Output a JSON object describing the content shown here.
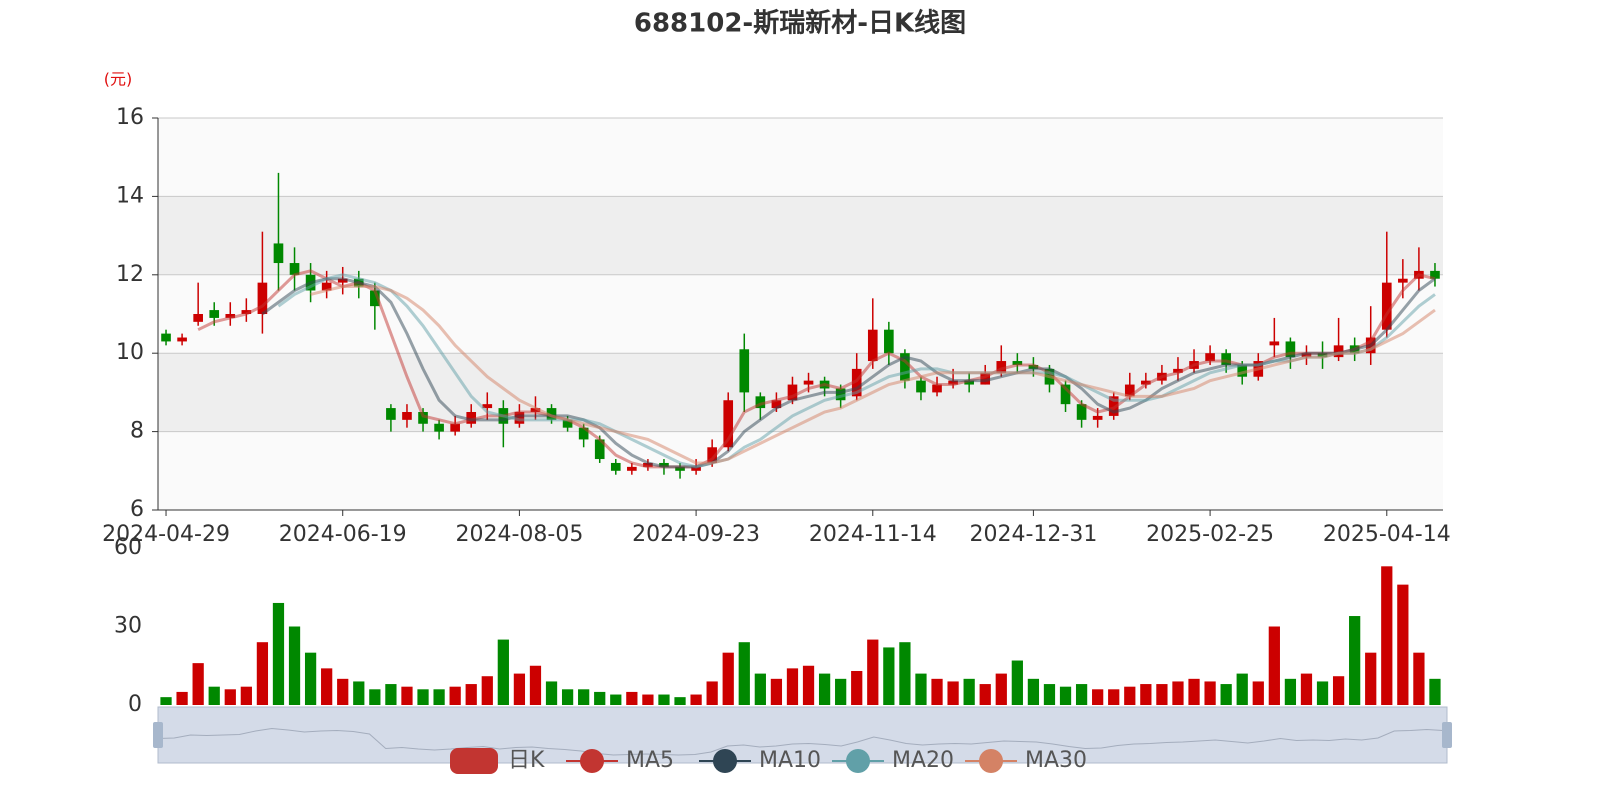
{
  "chart_data": {
    "type": "candlestick",
    "title": "688102-斯瑞新材-日K线图",
    "y_unit": "(元)",
    "categories": [
      "2024-04-29",
      null,
      null,
      null,
      null,
      null,
      null,
      null,
      null,
      null,
      null,
      "2024-06-19",
      null,
      null,
      null,
      null,
      null,
      null,
      null,
      null,
      null,
      null,
      "2024-08-05",
      null,
      null,
      null,
      null,
      null,
      null,
      null,
      null,
      null,
      null,
      "2024-09-23",
      null,
      null,
      null,
      null,
      null,
      null,
      null,
      null,
      null,
      null,
      "2024-11-14",
      null,
      null,
      null,
      null,
      null,
      null,
      null,
      null,
      null,
      "2024-12-31",
      null,
      null,
      null,
      null,
      null,
      null,
      null,
      null,
      null,
      null,
      "2025-02-25",
      null,
      null,
      null,
      null,
      null,
      null,
      null,
      null,
      null,
      null,
      "2025-04-14",
      null,
      null,
      null
    ],
    "ylim": [
      6,
      16
    ],
    "yticks": [
      6,
      8,
      10,
      12,
      14,
      16
    ],
    "grid": true,
    "series": [
      {
        "name": "日K",
        "color": "#c23531",
        "up_color": "#cc0000",
        "down_color": "#008800",
        "values": [
          [
            10.5,
            10.3,
            10.2,
            10.6
          ],
          [
            10.3,
            10.4,
            10.2,
            10.5
          ],
          [
            10.8,
            11.0,
            10.7,
            11.8
          ],
          [
            11.1,
            10.9,
            10.7,
            11.3
          ],
          [
            10.9,
            11.0,
            10.7,
            11.3
          ],
          [
            11.0,
            11.1,
            10.8,
            11.4
          ],
          [
            11.0,
            11.8,
            10.5,
            13.1
          ],
          [
            12.8,
            12.3,
            11.6,
            14.6
          ],
          [
            12.3,
            12.0,
            11.6,
            12.7
          ],
          [
            12.0,
            11.6,
            11.3,
            12.3
          ],
          [
            11.6,
            11.8,
            11.4,
            12.1
          ],
          [
            11.8,
            11.9,
            11.5,
            12.2
          ],
          [
            11.9,
            11.7,
            11.4,
            12.1
          ],
          [
            11.6,
            11.2,
            10.6,
            11.8
          ],
          [
            8.6,
            8.3,
            8.0,
            8.7
          ],
          [
            8.3,
            8.5,
            8.1,
            8.7
          ],
          [
            8.5,
            8.2,
            8.0,
            8.6
          ],
          [
            8.2,
            8.0,
            7.8,
            8.3
          ],
          [
            8.0,
            8.2,
            7.9,
            8.4
          ],
          [
            8.2,
            8.5,
            8.1,
            8.7
          ],
          [
            8.6,
            8.7,
            8.3,
            9.0
          ],
          [
            8.6,
            8.2,
            7.6,
            8.8
          ],
          [
            8.2,
            8.5,
            8.1,
            8.7
          ],
          [
            8.5,
            8.6,
            8.3,
            8.9
          ],
          [
            8.6,
            8.3,
            8.2,
            8.7
          ],
          [
            8.3,
            8.1,
            8.0,
            8.4
          ],
          [
            8.1,
            7.8,
            7.6,
            8.2
          ],
          [
            7.8,
            7.3,
            7.2,
            7.9
          ],
          [
            7.2,
            7.0,
            6.9,
            7.3
          ],
          [
            7.0,
            7.1,
            6.9,
            7.2
          ],
          [
            7.1,
            7.2,
            7.0,
            7.3
          ],
          [
            7.2,
            7.1,
            6.9,
            7.3
          ],
          [
            7.1,
            7.0,
            6.8,
            7.2
          ],
          [
            7.0,
            7.1,
            6.9,
            7.3
          ],
          [
            7.2,
            7.6,
            7.1,
            7.8
          ],
          [
            7.6,
            8.8,
            7.5,
            9.0
          ],
          [
            10.1,
            9.0,
            8.5,
            10.5
          ],
          [
            8.9,
            8.6,
            8.3,
            9.0
          ],
          [
            8.6,
            8.8,
            8.5,
            9.0
          ],
          [
            8.8,
            9.2,
            8.7,
            9.4
          ],
          [
            9.2,
            9.3,
            9.0,
            9.5
          ],
          [
            9.3,
            9.1,
            8.9,
            9.4
          ],
          [
            9.1,
            8.8,
            8.6,
            9.2
          ],
          [
            8.9,
            9.6,
            8.8,
            10.0
          ],
          [
            9.8,
            10.6,
            9.6,
            11.4
          ],
          [
            10.6,
            10.0,
            9.7,
            10.8
          ],
          [
            10.0,
            9.3,
            9.1,
            10.1
          ],
          [
            9.3,
            9.0,
            8.8,
            9.4
          ],
          [
            9.0,
            9.2,
            8.9,
            9.4
          ],
          [
            9.2,
            9.3,
            9.1,
            9.6
          ],
          [
            9.3,
            9.2,
            9.0,
            9.5
          ],
          [
            9.2,
            9.5,
            9.2,
            9.7
          ],
          [
            9.5,
            9.8,
            9.4,
            10.2
          ],
          [
            9.8,
            9.7,
            9.5,
            10.0
          ],
          [
            9.7,
            9.6,
            9.4,
            9.9
          ],
          [
            9.6,
            9.2,
            9.0,
            9.7
          ],
          [
            9.2,
            8.7,
            8.5,
            9.3
          ],
          [
            8.7,
            8.3,
            8.1,
            8.8
          ],
          [
            8.3,
            8.4,
            8.1,
            8.6
          ],
          [
            8.4,
            8.9,
            8.3,
            9.0
          ],
          [
            8.9,
            9.2,
            8.8,
            9.5
          ],
          [
            9.2,
            9.3,
            9.1,
            9.5
          ],
          [
            9.3,
            9.5,
            9.2,
            9.7
          ],
          [
            9.5,
            9.6,
            9.3,
            9.9
          ],
          [
            9.6,
            9.8,
            9.5,
            10.1
          ],
          [
            9.8,
            10.0,
            9.7,
            10.2
          ],
          [
            10.0,
            9.7,
            9.5,
            10.1
          ],
          [
            9.7,
            9.4,
            9.2,
            9.8
          ],
          [
            9.4,
            9.8,
            9.3,
            10.0
          ],
          [
            10.2,
            10.3,
            9.9,
            10.9
          ],
          [
            10.3,
            9.9,
            9.6,
            10.4
          ],
          [
            9.9,
            10.0,
            9.7,
            10.2
          ],
          [
            10.0,
            9.9,
            9.6,
            10.3
          ],
          [
            9.9,
            10.2,
            9.8,
            10.9
          ],
          [
            10.2,
            10.0,
            9.8,
            10.4
          ],
          [
            10.0,
            10.4,
            9.7,
            11.2
          ],
          [
            10.6,
            11.8,
            10.4,
            13.1
          ],
          [
            11.8,
            11.9,
            11.4,
            12.4
          ],
          [
            11.9,
            12.1,
            11.6,
            12.7
          ],
          [
            12.1,
            11.9,
            11.7,
            12.3
          ]
        ]
      },
      {
        "name": "MA5",
        "color": "#c23531",
        "values": [
          null,
          null,
          10.6,
          10.8,
          10.9,
          11.0,
          11.2,
          11.6,
          12.0,
          12.1,
          11.9,
          11.7,
          11.8,
          11.6,
          10.5,
          9.4,
          8.4,
          8.3,
          8.2,
          8.3,
          8.4,
          8.4,
          8.5,
          8.5,
          8.4,
          8.3,
          8.1,
          7.8,
          7.4,
          7.2,
          7.1,
          7.1,
          7.1,
          7.1,
          7.3,
          7.8,
          8.5,
          8.7,
          8.8,
          8.9,
          9.1,
          9.2,
          9.1,
          9.3,
          9.8,
          10.0,
          9.8,
          9.4,
          9.2,
          9.2,
          9.3,
          9.4,
          9.6,
          9.7,
          9.7,
          9.5,
          9.1,
          8.7,
          8.5,
          8.6,
          8.9,
          9.2,
          9.4,
          9.5,
          9.7,
          9.8,
          9.8,
          9.7,
          9.7,
          9.9,
          10.0,
          10.0,
          10.0,
          10.0,
          10.1,
          10.3,
          11.0,
          11.6,
          12.0,
          11.9
        ]
      },
      {
        "name": "MA10",
        "color": "#2f4554",
        "values": [
          null,
          null,
          null,
          null,
          null,
          null,
          11.0,
          11.3,
          11.6,
          11.8,
          11.9,
          11.9,
          11.8,
          11.7,
          11.3,
          10.5,
          9.6,
          8.8,
          8.4,
          8.3,
          8.3,
          8.3,
          8.4,
          8.4,
          8.4,
          8.4,
          8.3,
          8.1,
          7.7,
          7.4,
          7.2,
          7.1,
          7.1,
          7.1,
          7.2,
          7.5,
          8.0,
          8.3,
          8.6,
          8.8,
          8.9,
          9.0,
          9.0,
          9.1,
          9.4,
          9.7,
          9.9,
          9.8,
          9.5,
          9.3,
          9.3,
          9.3,
          9.4,
          9.5,
          9.6,
          9.6,
          9.4,
          9.1,
          8.7,
          8.5,
          8.6,
          8.8,
          9.1,
          9.3,
          9.5,
          9.6,
          9.7,
          9.7,
          9.7,
          9.8,
          9.9,
          10.0,
          10.0,
          10.0,
          10.1,
          10.2,
          10.6,
          11.1,
          11.6,
          11.9
        ]
      },
      {
        "name": "MA20",
        "color": "#61a0a8",
        "values": [
          null,
          null,
          null,
          null,
          null,
          null,
          null,
          11.2,
          11.5,
          11.7,
          11.9,
          12.0,
          11.9,
          11.8,
          11.6,
          11.2,
          10.7,
          10.1,
          9.5,
          8.9,
          8.5,
          8.4,
          8.3,
          8.3,
          8.3,
          8.3,
          8.3,
          8.2,
          8.0,
          7.8,
          7.6,
          7.4,
          7.2,
          7.1,
          7.2,
          7.3,
          7.6,
          7.8,
          8.1,
          8.4,
          8.6,
          8.8,
          8.9,
          9.0,
          9.2,
          9.4,
          9.5,
          9.6,
          9.6,
          9.5,
          9.5,
          9.5,
          9.5,
          9.5,
          9.5,
          9.5,
          9.4,
          9.2,
          9.0,
          8.8,
          8.8,
          8.8,
          8.9,
          9.1,
          9.3,
          9.5,
          9.6,
          9.7,
          9.7,
          9.8,
          9.8,
          9.9,
          9.9,
          10.0,
          10.0,
          10.1,
          10.4,
          10.8,
          11.2,
          11.5
        ]
      },
      {
        "name": "MA30",
        "color": "#d48265",
        "values": [
          null,
          null,
          null,
          null,
          null,
          null,
          null,
          null,
          null,
          11.5,
          11.6,
          11.7,
          11.7,
          11.7,
          11.6,
          11.4,
          11.1,
          10.7,
          10.2,
          9.8,
          9.4,
          9.1,
          8.8,
          8.6,
          8.4,
          8.3,
          8.2,
          8.1,
          8.0,
          7.9,
          7.8,
          7.6,
          7.4,
          7.2,
          7.2,
          7.3,
          7.5,
          7.7,
          7.9,
          8.1,
          8.3,
          8.5,
          8.6,
          8.8,
          9.0,
          9.2,
          9.3,
          9.4,
          9.5,
          9.5,
          9.5,
          9.5,
          9.5,
          9.5,
          9.5,
          9.4,
          9.3,
          9.2,
          9.1,
          9.0,
          8.9,
          8.9,
          8.9,
          9.0,
          9.1,
          9.3,
          9.4,
          9.5,
          9.6,
          9.7,
          9.8,
          9.9,
          9.9,
          10.0,
          10.0,
          10.1,
          10.3,
          10.5,
          10.8,
          11.1
        ]
      }
    ],
    "volume": {
      "ylim": [
        0,
        60
      ],
      "yticks": [
        0,
        30,
        60
      ],
      "values": [
        3,
        5,
        16,
        7,
        6,
        7,
        24,
        39,
        30,
        20,
        14,
        10,
        9,
        6,
        8,
        7,
        6,
        6,
        7,
        8,
        11,
        25,
        12,
        15,
        9,
        6,
        6,
        5,
        4,
        5,
        4,
        4,
        3,
        4,
        9,
        20,
        24,
        12,
        10,
        14,
        15,
        12,
        10,
        13,
        25,
        22,
        24,
        12,
        10,
        9,
        10,
        8,
        12,
        17,
        10,
        8,
        7,
        8,
        6,
        6,
        7,
        8,
        8,
        9,
        10,
        9,
        8,
        12,
        9,
        30,
        10,
        12,
        9,
        11,
        34,
        20,
        53,
        46,
        20,
        10
      ]
    }
  }
}
